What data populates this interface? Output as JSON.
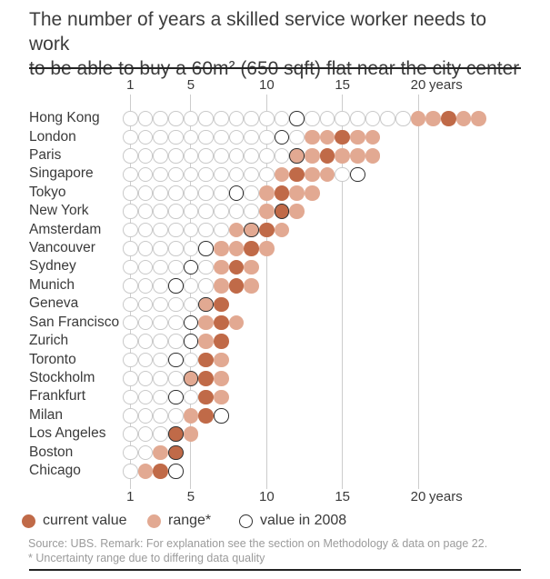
{
  "header": {
    "title_line1": "The number of years a skilled service worker needs to work",
    "title_line2": "to be able to buy a 60m² (650 sqft) flat near the city center"
  },
  "chart_data": {
    "type": "dot-plot",
    "title": "The number of years a skilled service worker needs to work to be able to buy a 60m² (650 sqft) flat near the city center",
    "x_ticks": [
      1,
      5,
      10,
      15,
      20
    ],
    "x_unit_suffix": "years",
    "x_range": [
      1,
      24
    ],
    "grid": true,
    "legend": [
      {
        "label": "current value",
        "style": "current"
      },
      {
        "label": "range*",
        "style": "range"
      },
      {
        "label": "value in 2008",
        "style": "y2008"
      }
    ],
    "colors": {
      "current": "#c06a48",
      "range": "#e2a992",
      "empty_stroke": "#c9c9c9",
      "y2008_stroke": "#2f2f2f"
    },
    "rows": [
      {
        "city": "Hong Kong",
        "range": [
          20,
          24
        ],
        "current": 22,
        "value_2008": 12
      },
      {
        "city": "London",
        "range": [
          13,
          17
        ],
        "current": 15,
        "value_2008": 11
      },
      {
        "city": "Paris",
        "range": [
          12,
          17
        ],
        "current": 14,
        "value_2008": 12
      },
      {
        "city": "Singapore",
        "range": [
          11,
          14
        ],
        "current": 12,
        "value_2008": 16
      },
      {
        "city": "Tokyo",
        "range": [
          10,
          13
        ],
        "current": 11,
        "value_2008": 8
      },
      {
        "city": "New York",
        "range": [
          10,
          12
        ],
        "current": 11,
        "value_2008": 11
      },
      {
        "city": "Amsterdam",
        "range": [
          8,
          11
        ],
        "current": 10,
        "value_2008": 9
      },
      {
        "city": "Vancouver",
        "range": [
          7,
          10
        ],
        "current": 9,
        "value_2008": 6
      },
      {
        "city": "Sydney",
        "range": [
          7,
          9
        ],
        "current": 8,
        "value_2008": 5
      },
      {
        "city": "Munich",
        "range": [
          7,
          9
        ],
        "current": 8,
        "value_2008": 4
      },
      {
        "city": "Geneva",
        "range": [
          6,
          7
        ],
        "current": 7,
        "value_2008": 6
      },
      {
        "city": "San Francisco",
        "range": [
          6,
          8
        ],
        "current": 7,
        "value_2008": 5
      },
      {
        "city": "Zurich",
        "range": [
          6,
          7
        ],
        "current": 7,
        "value_2008": 5
      },
      {
        "city": "Toronto",
        "range": [
          6,
          7
        ],
        "current": 6,
        "value_2008": 4
      },
      {
        "city": "Stockholm",
        "range": [
          5,
          7
        ],
        "current": 6,
        "value_2008": 5
      },
      {
        "city": "Frankfurt",
        "range": [
          6,
          7
        ],
        "current": 6,
        "value_2008": 4
      },
      {
        "city": "Milan",
        "range": [
          5,
          6
        ],
        "current": 6,
        "value_2008": 7
      },
      {
        "city": "Los Angeles",
        "range": [
          4,
          5
        ],
        "current": 4,
        "value_2008": 4
      },
      {
        "city": "Boston",
        "range": [
          3,
          4
        ],
        "current": 4,
        "value_2008": 4
      },
      {
        "city": "Chicago",
        "range": [
          2,
          3
        ],
        "current": 3,
        "value_2008": 4
      }
    ]
  },
  "footer": {
    "source_line": "Source: UBS. Remark: For explanation see the section on Methodology & data on page 22.",
    "note_line": "* Uncertainty range due to differing data quality"
  }
}
